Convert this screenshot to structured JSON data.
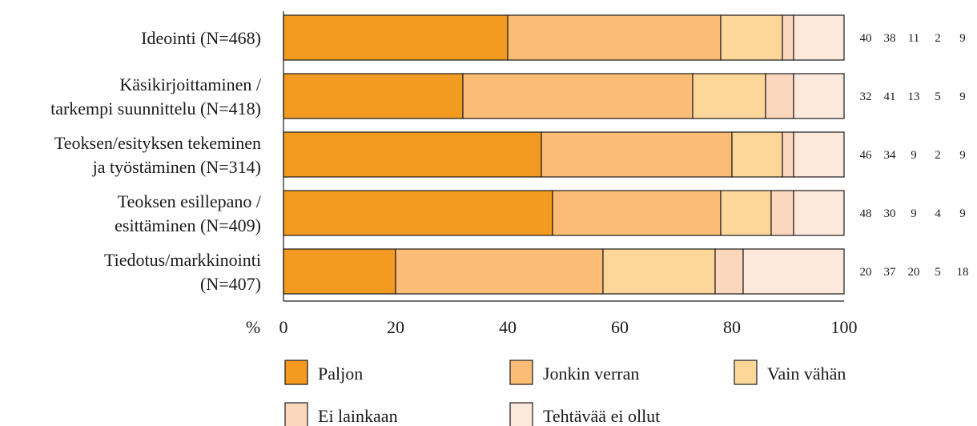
{
  "chart_data": {
    "type": "bar",
    "orientation": "horizontal",
    "stacked": true,
    "categories": [
      [
        "Ideointi (N=468)"
      ],
      [
        "Käsikirjoittaminen /",
        "tarkempi suunnittelu (N=418)"
      ],
      [
        "Teoksen/esityksen tekeminen",
        "ja työstäminen (N=314)"
      ],
      [
        "Teoksen esillepano /",
        "esittäminen (N=409)"
      ],
      [
        "Tiedotus/markkinointi",
        "(N=407)"
      ]
    ],
    "series": [
      {
        "name": "Paljon",
        "color": "#f39a21",
        "values": [
          40,
          32,
          46,
          48,
          20
        ]
      },
      {
        "name": "Jonkin verran",
        "color": "#fbbd75",
        "values": [
          38,
          41,
          34,
          30,
          37
        ]
      },
      {
        "name": "Vain vähän",
        "color": "#fdd79a",
        "values": [
          11,
          13,
          9,
          9,
          20
        ]
      },
      {
        "name": "Ei lainkaan",
        "color": "#fbd8bd",
        "values": [
          2,
          5,
          2,
          4,
          5
        ]
      },
      {
        "name": "Tehtävää ei ollut",
        "color": "#fde8dc",
        "values": [
          9,
          9,
          9,
          9,
          18
        ]
      }
    ],
    "value_labels": [
      [
        "40",
        "38",
        "11",
        "2",
        "9"
      ],
      [
        "32",
        "41",
        "13",
        "5",
        "9"
      ],
      [
        "46",
        "34",
        "9",
        "2",
        "9"
      ],
      [
        "48",
        "30",
        "9",
        "4",
        "9"
      ],
      [
        "20",
        "37",
        "20",
        "5",
        "18"
      ]
    ],
    "xlim": [
      0,
      100
    ],
    "xticks": [
      0,
      20,
      40,
      60,
      80,
      100
    ],
    "x_unit_label": "%",
    "legend_position": "bottom",
    "grid": false
  }
}
